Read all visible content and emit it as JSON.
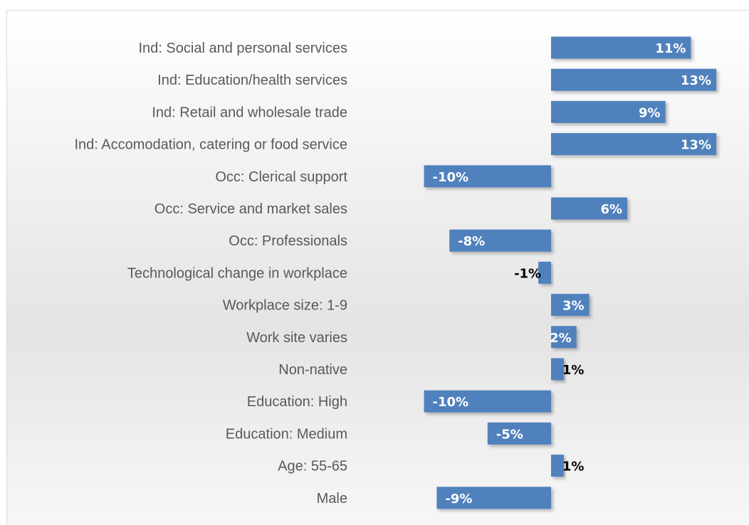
{
  "chart_data": {
    "type": "bar",
    "orientation": "horizontal",
    "categories": [
      "Ind: Social and personal services",
      "Ind: Education/health services",
      "Ind: Retail and wholesale trade",
      "Ind: Accomodation, catering or food service",
      "Occ: Clerical support",
      "Occ: Service and market sales",
      "Occ: Professionals",
      "Technological change in workplace",
      "Workplace size: 1-9",
      "Work site varies",
      "Non-native",
      "Education: High",
      "Education: Medium",
      "Age: 55-65",
      "Male"
    ],
    "values": [
      11,
      13,
      9,
      13,
      -10,
      6,
      -8,
      -1,
      3,
      2,
      1,
      -10,
      -5,
      1,
      -9
    ],
    "data_labels": [
      "11%",
      "13%",
      "9%",
      "13%",
      "-10%",
      "6%",
      "-8%",
      "-1%",
      "3%",
      "2%",
      "1%",
      "-10%",
      "-5%",
      "1%",
      "-9%"
    ],
    "value_unit": "%",
    "xlim": [
      -10,
      13
    ],
    "title": "",
    "xlabel": "",
    "ylabel": "",
    "grid": false,
    "legend": "none",
    "colors": {
      "bar": "#4f81bd",
      "bar_dark": "#3d6ba3",
      "label_inside": "#ffffff",
      "label_outside": "#000000",
      "category_text": "#595959"
    }
  }
}
